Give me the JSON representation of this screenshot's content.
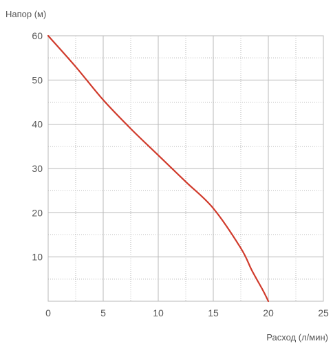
{
  "chart_data": {
    "type": "line",
    "title": "",
    "xlabel": "Расход (л/мин)",
    "ylabel": "Напор (м)",
    "xlim": [
      0,
      25
    ],
    "ylim": [
      0,
      60
    ],
    "x_ticks": [
      0,
      5,
      10,
      15,
      20,
      25
    ],
    "y_ticks": [
      10,
      20,
      30,
      40,
      50,
      60
    ],
    "x_minor_step": 2.5,
    "y_minor_step": 5,
    "grid": true,
    "legend": "none",
    "series": [
      {
        "color": "#d03a2b",
        "x": [
          0,
          2.5,
          5,
          7.5,
          10,
          12.5,
          15,
          17.5,
          18.5,
          19.5,
          20
        ],
        "y": [
          60,
          53,
          45.5,
          39,
          33,
          27,
          21,
          12,
          7,
          2.5,
          0
        ]
      }
    ],
    "colors": {
      "major_grid": "#b9b9b9",
      "minor_grid": "#b9b9b9",
      "border": "#b9b9b9",
      "text": "#555555"
    }
  }
}
